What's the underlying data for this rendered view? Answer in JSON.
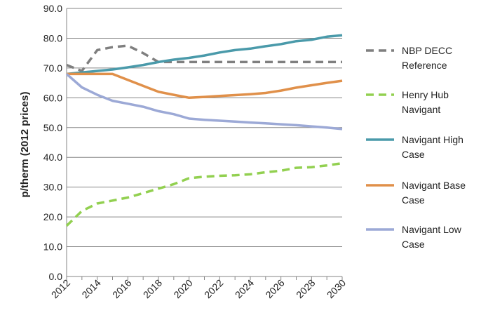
{
  "chart_data": {
    "type": "line",
    "title": "",
    "xlabel": "",
    "ylabel": "p/therm (2012 prices)",
    "ylim": [
      0,
      90
    ],
    "yticks": [
      "0.0",
      "10.0",
      "20.0",
      "30.0",
      "40.0",
      "50.0",
      "60.0",
      "70.0",
      "80.0",
      "90.0"
    ],
    "xlim": [
      2012,
      2030
    ],
    "xticks": [
      "2012",
      "2014",
      "2016",
      "2018",
      "2020",
      "2022",
      "2024",
      "2026",
      "2028",
      "2030"
    ],
    "grid": "horizontal",
    "legend_position": "right",
    "x": [
      2012,
      2013,
      2014,
      2015,
      2016,
      2017,
      2018,
      2019,
      2020,
      2021,
      2022,
      2023,
      2024,
      2025,
      2026,
      2027,
      2028,
      2029,
      2030
    ],
    "series": [
      {
        "name": "NBP DECC Reference",
        "legend_lines": [
          "NBP DECC",
          "Reference"
        ],
        "color": "#7f7f7f",
        "dash": "dashed",
        "values": [
          71,
          69,
          76,
          77,
          77.5,
          75,
          72,
          72,
          72,
          72,
          72,
          72,
          72,
          72,
          72,
          72,
          72,
          72,
          72
        ]
      },
      {
        "name": "Henry Hub Navigant",
        "legend_lines": [
          "Henry Hub",
          "Navigant"
        ],
        "color": "#92d050",
        "dash": "dashed",
        "values": [
          17,
          22,
          24.5,
          25.5,
          26.5,
          28,
          29.5,
          31,
          33,
          33.5,
          33.8,
          34,
          34.3,
          35,
          35.5,
          36.5,
          36.7,
          37.3,
          38
        ]
      },
      {
        "name": "Navigant High Case",
        "legend_lines": [
          "Navigant High",
          "Case"
        ],
        "color": "#4a9aaa",
        "dash": "solid",
        "values": [
          68,
          68.5,
          69,
          69.5,
          70.2,
          71,
          72,
          72.8,
          73.4,
          74.2,
          75.2,
          76,
          76.5,
          77.3,
          78,
          79,
          79.5,
          80.5,
          81
        ]
      },
      {
        "name": "Navigant Base Case",
        "legend_lines": [
          "Navigant Base",
          "Case"
        ],
        "color": "#e0904a",
        "dash": "solid",
        "values": [
          68,
          68,
          68,
          68,
          66,
          64,
          62,
          61,
          60,
          60.3,
          60.6,
          60.9,
          61.2,
          61.6,
          62.4,
          63.4,
          64.2,
          65,
          65.7
        ]
      },
      {
        "name": "Navigant Low Case",
        "legend_lines": [
          "Navigant Low",
          "Case"
        ],
        "color": "#9ca9d6",
        "dash": "solid",
        "values": [
          68,
          63.5,
          61,
          59,
          58,
          57,
          55.5,
          54.5,
          53,
          52.6,
          52.3,
          52,
          51.7,
          51.4,
          51.1,
          50.8,
          50.4,
          50,
          49.5
        ]
      }
    ]
  }
}
